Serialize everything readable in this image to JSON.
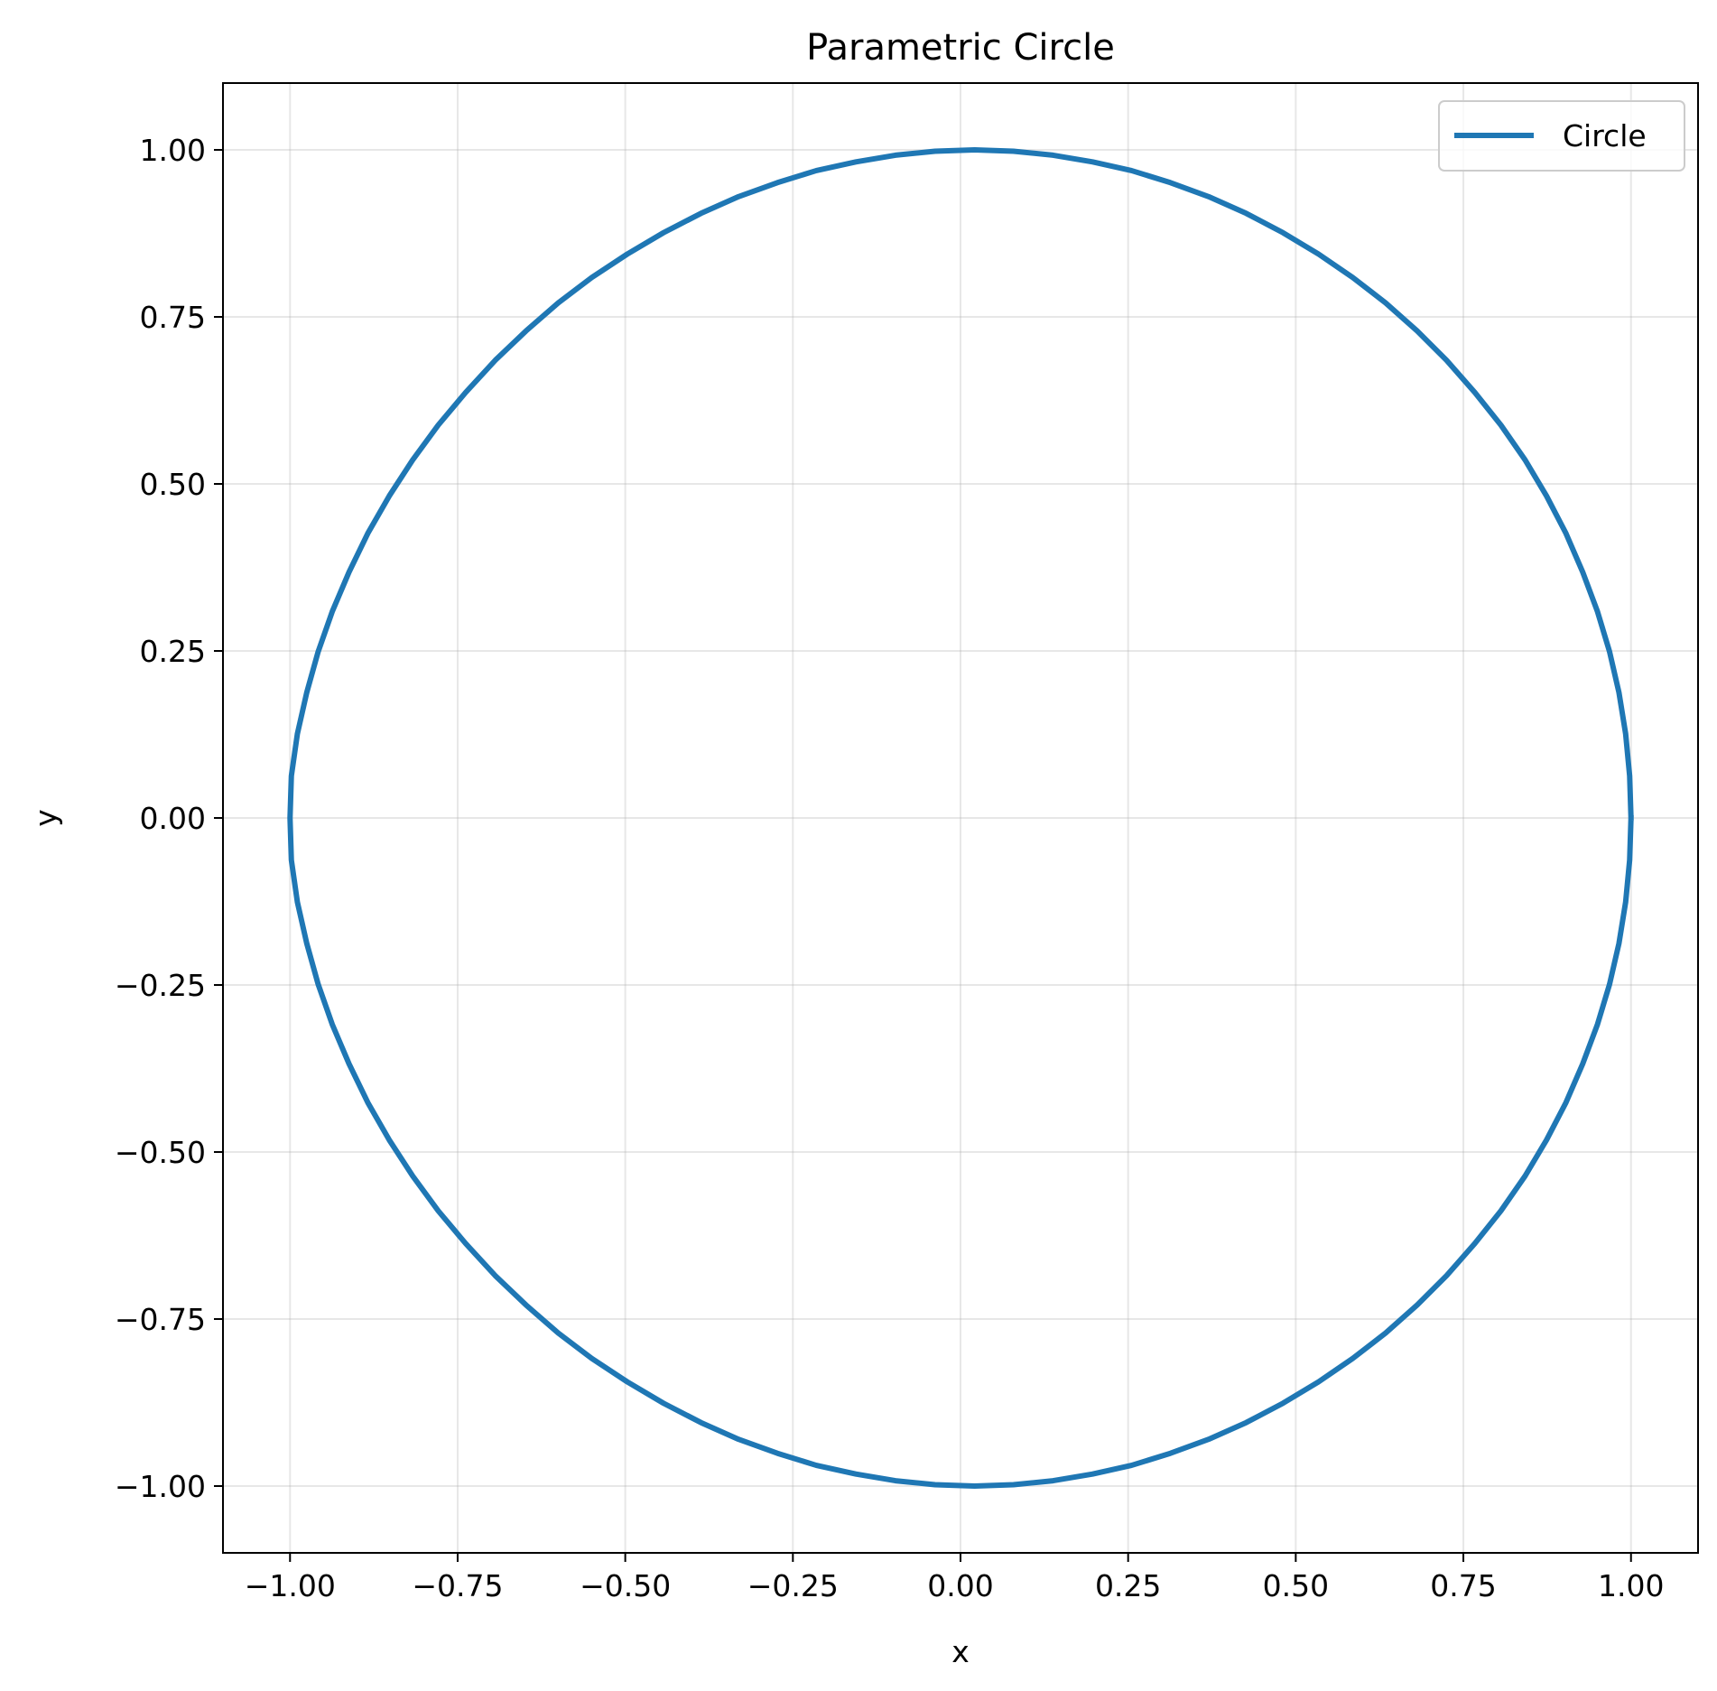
{
  "chart_data": {
    "type": "line",
    "title": "Parametric Circle",
    "xlabel": "x",
    "ylabel": "y",
    "xlim": [
      -1.1,
      1.1
    ],
    "ylim": [
      -1.1,
      1.1
    ],
    "grid": true,
    "legend_position": "top-right",
    "x_ticks": [
      -1.0,
      -0.75,
      -0.5,
      -0.25,
      0.0,
      0.25,
      0.5,
      0.75,
      1.0
    ],
    "x_tick_labels": [
      "−1.00",
      "−0.75",
      "−0.50",
      "−0.25",
      "0.00",
      "0.25",
      "0.50",
      "0.75",
      "1.00"
    ],
    "y_ticks": [
      1.0,
      0.75,
      0.5,
      0.25,
      0.0,
      -0.25,
      -0.5,
      -0.75,
      -1.0
    ],
    "y_tick_labels": [
      "1.00",
      "0.75",
      "0.50",
      "0.25",
      "0.00",
      "−0.25",
      "−0.50",
      "−0.75",
      "−1.00"
    ],
    "series": [
      {
        "name": "Circle",
        "color": "#1f77b4",
        "x": [
          1.0,
          0.998,
          0.992,
          0.982,
          0.968,
          0.95,
          0.928,
          0.903,
          0.874,
          0.842,
          0.806,
          0.767,
          0.725,
          0.681,
          0.634,
          0.585,
          0.534,
          0.481,
          0.426,
          0.37,
          0.313,
          0.255,
          0.197,
          0.138,
          0.079,
          0.021,
          -0.038,
          -0.097,
          -0.156,
          -0.215,
          -0.273,
          -0.331,
          -0.387,
          -0.443,
          -0.497,
          -0.55,
          -0.6,
          -0.648,
          -0.694,
          -0.738,
          -0.779,
          -0.817,
          -0.852,
          -0.884,
          -0.912,
          -0.937,
          -0.958,
          -0.975,
          -0.989,
          -0.998,
          -1.0,
          -0.998,
          -0.989,
          -0.975,
          -0.958,
          -0.937,
          -0.912,
          -0.884,
          -0.852,
          -0.817,
          -0.779,
          -0.738,
          -0.694,
          -0.648,
          -0.6,
          -0.55,
          -0.497,
          -0.443,
          -0.387,
          -0.331,
          -0.273,
          -0.215,
          -0.156,
          -0.097,
          -0.038,
          0.021,
          0.079,
          0.138,
          0.197,
          0.255,
          0.313,
          0.37,
          0.426,
          0.481,
          0.534,
          0.585,
          0.634,
          0.681,
          0.725,
          0.767,
          0.806,
          0.842,
          0.874,
          0.903,
          0.928,
          0.95,
          0.968,
          0.982,
          0.992,
          0.998,
          1.0
        ],
        "y": [
          0.0,
          0.063,
          0.126,
          0.188,
          0.249,
          0.309,
          0.368,
          0.426,
          0.482,
          0.536,
          0.588,
          0.637,
          0.685,
          0.729,
          0.771,
          0.809,
          0.844,
          0.876,
          0.905,
          0.93,
          0.951,
          0.969,
          0.982,
          0.992,
          0.998,
          1.0,
          0.998,
          0.992,
          0.982,
          0.969,
          0.951,
          0.93,
          0.905,
          0.876,
          0.844,
          0.809,
          0.771,
          0.729,
          0.685,
          0.637,
          0.588,
          0.536,
          0.482,
          0.426,
          0.368,
          0.309,
          0.249,
          0.188,
          0.126,
          0.063,
          0.0,
          -0.063,
          -0.126,
          -0.188,
          -0.249,
          -0.309,
          -0.368,
          -0.426,
          -0.482,
          -0.536,
          -0.588,
          -0.637,
          -0.685,
          -0.729,
          -0.771,
          -0.809,
          -0.844,
          -0.876,
          -0.905,
          -0.93,
          -0.951,
          -0.969,
          -0.982,
          -0.992,
          -0.998,
          -1.0,
          -0.998,
          -0.992,
          -0.982,
          -0.969,
          -0.951,
          -0.93,
          -0.905,
          -0.876,
          -0.844,
          -0.809,
          -0.771,
          -0.729,
          -0.685,
          -0.637,
          -0.588,
          -0.536,
          -0.482,
          -0.426,
          -0.368,
          -0.309,
          -0.249,
          -0.188,
          -0.126,
          -0.063,
          0.0
        ]
      }
    ]
  }
}
